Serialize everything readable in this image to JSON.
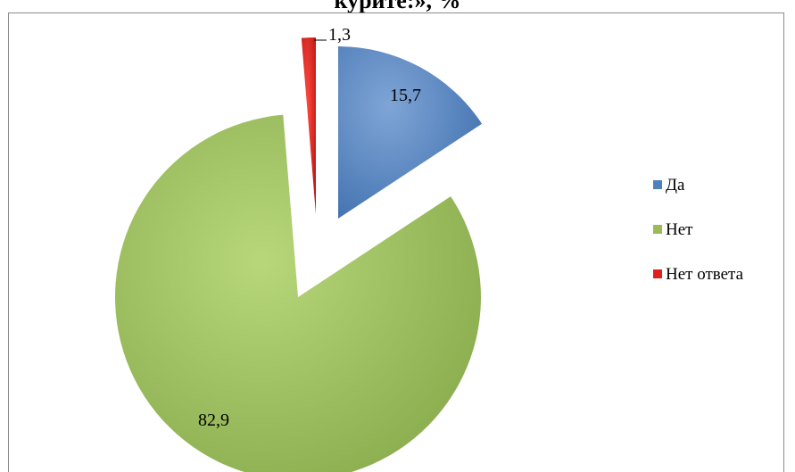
{
  "chart_data": {
    "type": "pie",
    "title": "курите:», %",
    "categories": [
      "Да",
      "Нет",
      "Нет ответа"
    ],
    "values": [
      15.7,
      82.9,
      1.3
    ],
    "value_labels": [
      "15,7",
      "82,9",
      "1,3"
    ],
    "colors": [
      "#4f81bd",
      "#9bbb59",
      "#e0201b"
    ],
    "exploded": true,
    "legend_position": "right"
  }
}
